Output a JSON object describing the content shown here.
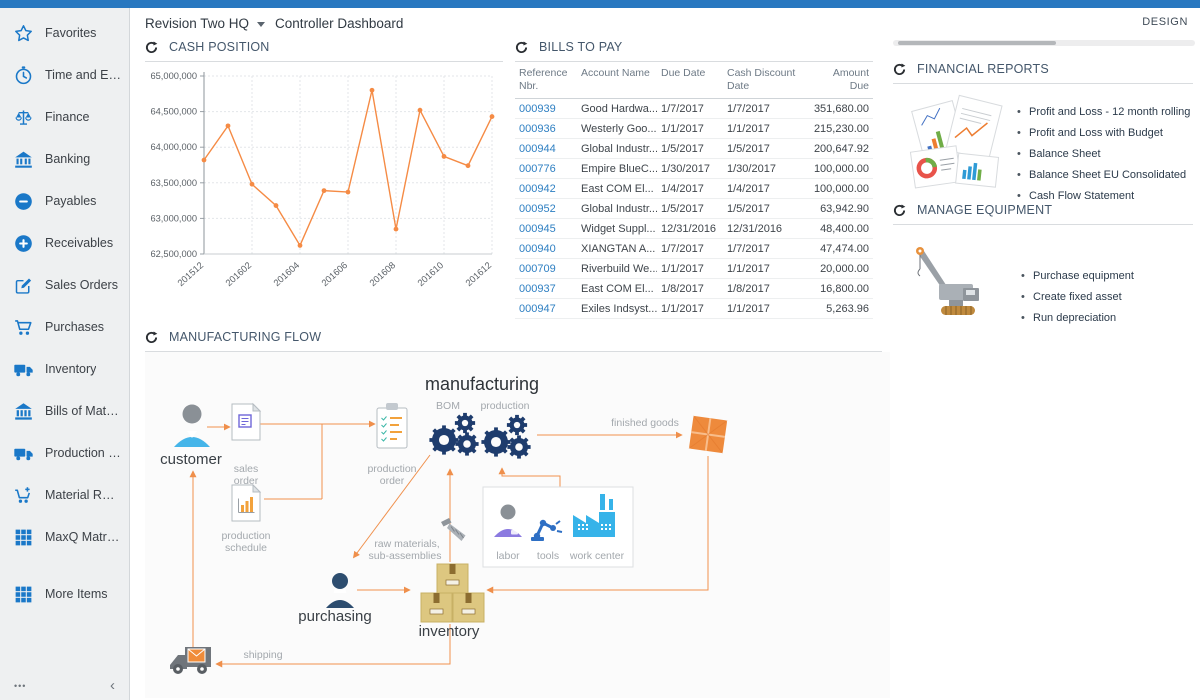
{
  "header": {
    "company": "Revision Two HQ",
    "page_title": "Controller Dashboard",
    "design_label": "DESIGN"
  },
  "sidebar": {
    "items": [
      {
        "label": "Favorites",
        "icon": "star"
      },
      {
        "label": "Time and Expenses",
        "icon": "clock"
      },
      {
        "label": "Finance",
        "icon": "scales"
      },
      {
        "label": "Banking",
        "icon": "bank"
      },
      {
        "label": "Payables",
        "icon": "minus-circle"
      },
      {
        "label": "Receivables",
        "icon": "plus-circle"
      },
      {
        "label": "Sales Orders",
        "icon": "edit"
      },
      {
        "label": "Purchases",
        "icon": "cart"
      },
      {
        "label": "Inventory",
        "icon": "truck"
      },
      {
        "label": "Bills of Material",
        "icon": "building"
      },
      {
        "label": "Production Orders",
        "icon": "truck"
      },
      {
        "label": "Material Requirem...",
        "icon": "cart-plus"
      },
      {
        "label": "MaxQ Matrix Invent...",
        "icon": "grid"
      },
      {
        "label": "More Items",
        "icon": "grid",
        "gap": true
      }
    ],
    "more_label": "•••",
    "collapse_label": "‹"
  },
  "panels": {
    "cash_position": {
      "title": "CASH POSITION"
    },
    "bills_to_pay": {
      "title": "BILLS TO PAY",
      "columns": [
        "Reference Nbr.",
        "Account Name",
        "Due Date",
        "Cash Discount Date",
        "Amount Due"
      ],
      "rows": [
        [
          "000939",
          "Good Hardwa...",
          "1/7/2017",
          "1/7/2017",
          "351,680.00"
        ],
        [
          "000936",
          "Westerly Goo...",
          "1/1/2017",
          "1/1/2017",
          "215,230.00"
        ],
        [
          "000944",
          "Global Industr...",
          "1/5/2017",
          "1/5/2017",
          "200,647.92"
        ],
        [
          "000776",
          "Empire BlueC...",
          "1/30/2017",
          "1/30/2017",
          "100,000.00"
        ],
        [
          "000942",
          "East COM El...",
          "1/4/2017",
          "1/4/2017",
          "100,000.00"
        ],
        [
          "000952",
          "Global Industr...",
          "1/5/2017",
          "1/5/2017",
          "63,942.90"
        ],
        [
          "000945",
          "Widget Suppl...",
          "12/31/2016",
          "12/31/2016",
          "48,400.00"
        ],
        [
          "000940",
          "XIANGTAN A...",
          "1/7/2017",
          "1/7/2017",
          "47,474.00"
        ],
        [
          "000709",
          "Riverbuild We...",
          "1/1/2017",
          "1/1/2017",
          "20,000.00"
        ],
        [
          "000937",
          "East COM El...",
          "1/8/2017",
          "1/8/2017",
          "16,800.00"
        ],
        [
          "000947",
          "Exiles Indsyst...",
          "1/1/2017",
          "1/1/2017",
          "5,263.96"
        ]
      ]
    },
    "financial_reports": {
      "title": "FINANCIAL REPORTS",
      "links": [
        "Profit and Loss - 12 month rolling",
        "Profit and Loss with Budget",
        "Balance Sheet",
        "Balance Sheet EU Consolidated",
        "Cash Flow Statement"
      ]
    },
    "manage_equipment": {
      "title": "MANAGE EQUIPMENT",
      "links": [
        "Purchase equipment",
        "Create fixed asset",
        "Run depreciation"
      ]
    },
    "manufacturing_flow": {
      "title": "MANUFACTURING FLOW",
      "labels": {
        "manufacturing": "manufacturing",
        "bom": "BOM",
        "production": "production",
        "customer": "customer",
        "sales_order": [
          "sales",
          "order"
        ],
        "production_order": [
          "production",
          "order"
        ],
        "production_schedule": [
          "production",
          "schedule"
        ],
        "finished_goods": "finished goods",
        "raw_materials": [
          "raw materials,",
          "sub-assemblies"
        ],
        "labor": "labor",
        "tools": "tools",
        "work_center": "work center",
        "purchasing": "purchasing",
        "inventory": "inventory",
        "shipping": "shipping"
      }
    }
  },
  "chart_data": {
    "type": "line",
    "title": "CASH POSITION",
    "x": [
      "201512",
      "201601",
      "201602",
      "201603",
      "201604",
      "201605",
      "201606",
      "201607",
      "201608",
      "201609",
      "201610",
      "201611",
      "201612"
    ],
    "values": [
      63820000,
      64300000,
      63480000,
      63180000,
      62620000,
      63390000,
      63370000,
      64800000,
      62850000,
      64520000,
      63870000,
      63740000,
      64430000
    ],
    "x_tick_labels": [
      "201512",
      "201602",
      "201604",
      "201606",
      "201608",
      "201610",
      "201612"
    ],
    "ylim": [
      62500000,
      65000000
    ],
    "y_tick_step": 500000,
    "xlabel": "",
    "ylabel": "",
    "grid": true,
    "legend": "none",
    "line_color": "#f58b45"
  },
  "colors": {
    "topbar_blue": "#2878c0",
    "sidebar_icon_blue": "#1a78c8",
    "link_blue": "#2e7fc2",
    "flow_arrow_orange": "#f0914e"
  }
}
